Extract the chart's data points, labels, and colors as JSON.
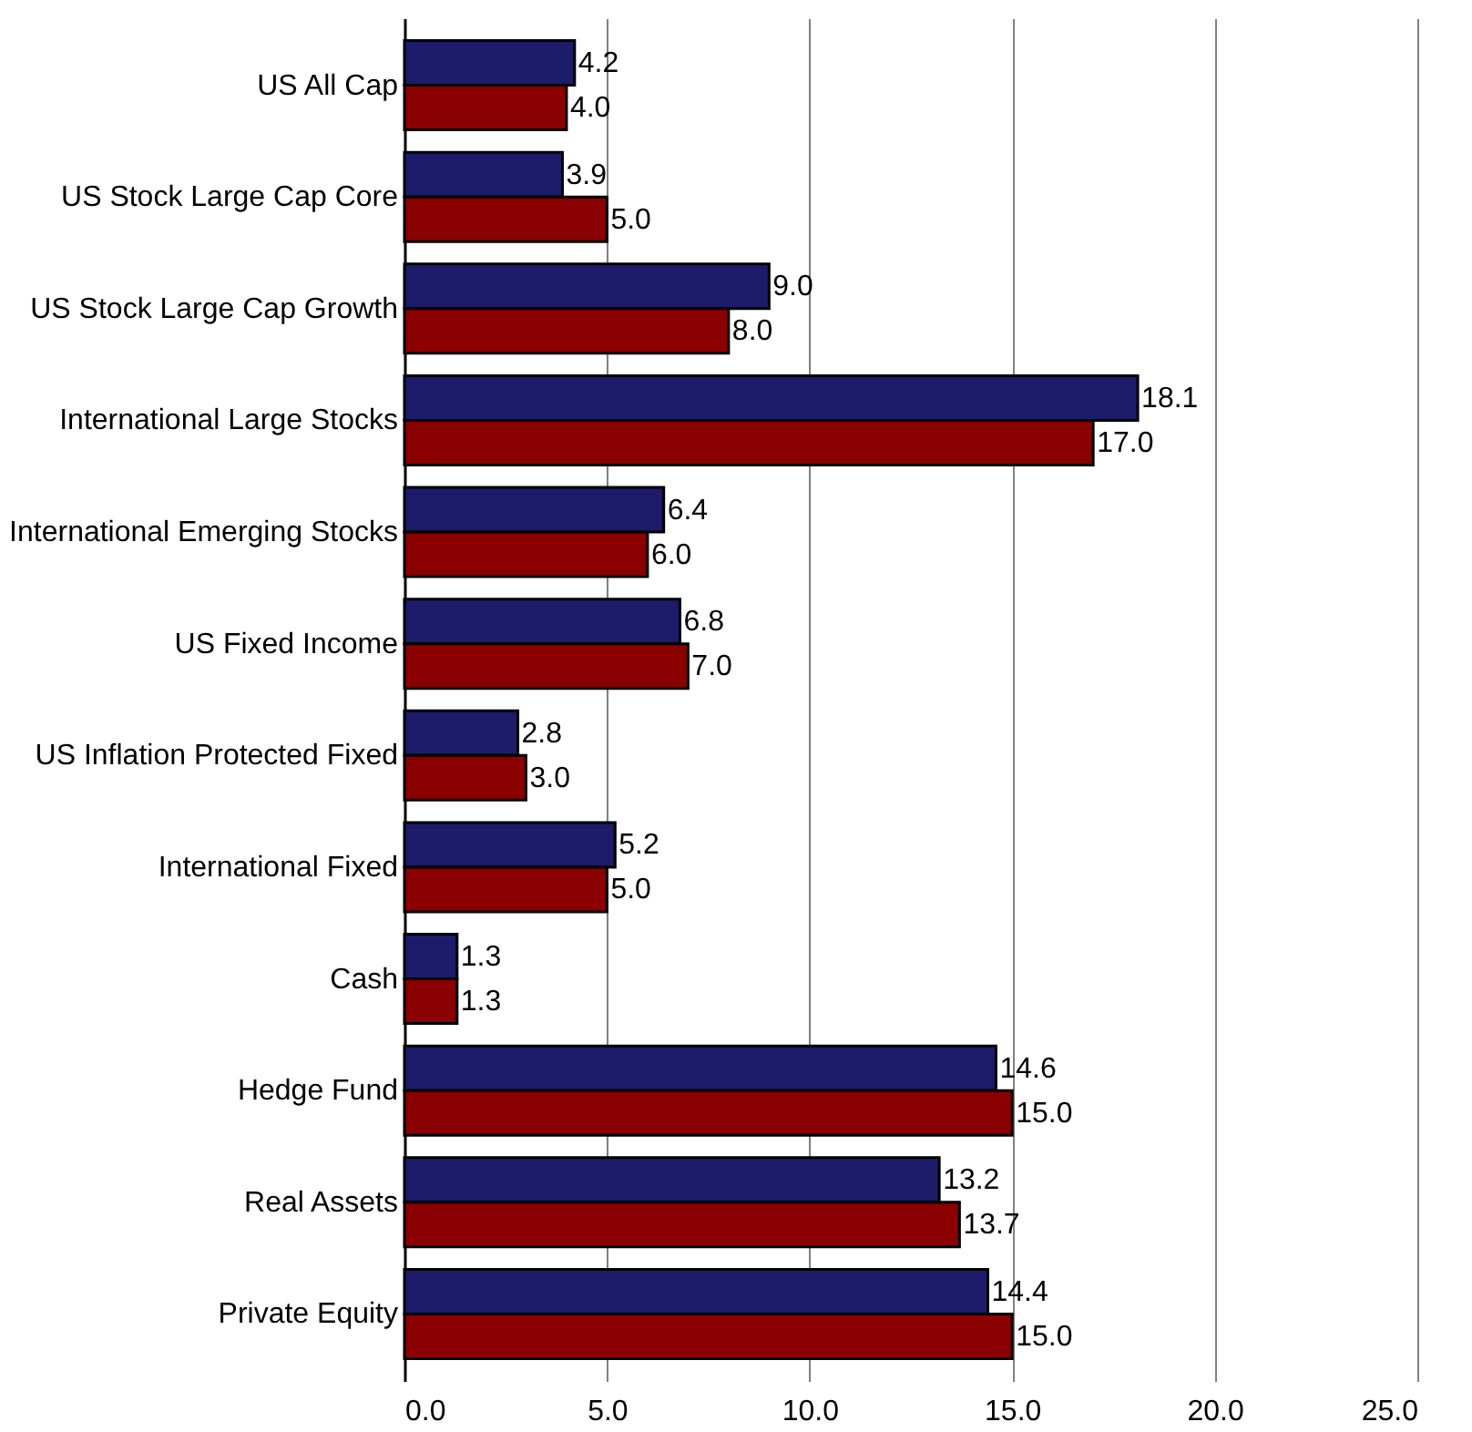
{
  "chart_data": {
    "type": "bar",
    "orientation": "horizontal",
    "categories": [
      "US All Cap",
      "US Stock Large Cap Core",
      "US Stock Large Cap Growth",
      "International Large Stocks",
      "International Emerging Stocks",
      "US Fixed Income",
      "US Inflation Protected Fixed",
      "International Fixed",
      "Cash",
      "Hedge Fund",
      "Real Assets",
      "Private Equity"
    ],
    "series": [
      {
        "color": "#1c1c6b",
        "values": [
          4.2,
          3.9,
          9.0,
          18.1,
          6.4,
          6.8,
          2.8,
          5.2,
          1.3,
          14.6,
          13.2,
          14.4
        ],
        "value_labels": [
          "4.2",
          "3.9",
          "9.0",
          "18.1",
          "6.4",
          "6.8",
          "2.8",
          "5.2",
          "1.3",
          "14.6",
          "13.2",
          "14.4"
        ]
      },
      {
        "color": "#8b0000",
        "values": [
          4.0,
          5.0,
          8.0,
          17.0,
          6.0,
          7.0,
          3.0,
          5.0,
          1.3,
          15.0,
          13.7,
          15.0
        ],
        "value_labels": [
          "4.0",
          "5.0",
          "8.0",
          "17.0",
          "6.0",
          "7.0",
          "3.0",
          "5.0",
          "1.3",
          "15.0",
          "13.7",
          "15.0"
        ]
      }
    ],
    "xlim": [
      0,
      25
    ],
    "xticks": [
      {
        "value": 0,
        "label": "0.0"
      },
      {
        "value": 5,
        "label": "5.0"
      },
      {
        "value": 10,
        "label": "10.0"
      },
      {
        "value": 15,
        "label": "15.0"
      },
      {
        "value": 20,
        "label": "20.0"
      },
      {
        "value": 25,
        "label": "25.0"
      }
    ],
    "grid": true
  }
}
